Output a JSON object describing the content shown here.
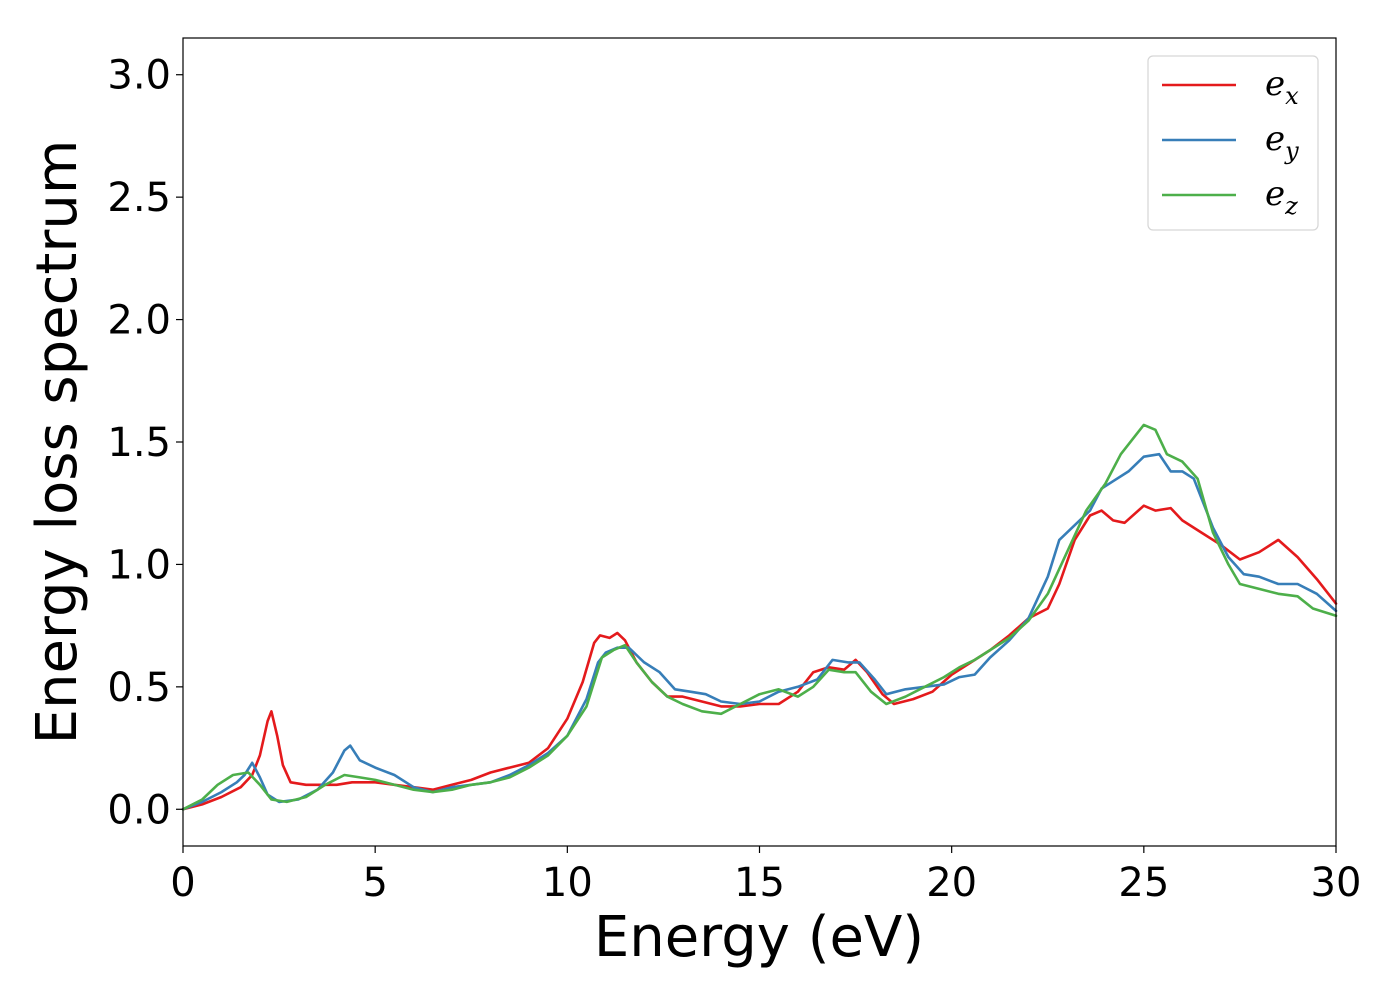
{
  "chart_data": {
    "type": "line",
    "xlabel": "Energy (eV)",
    "ylabel": "Energy loss spectrum",
    "xlim": [
      0,
      30
    ],
    "ylim": [
      -0.15,
      3.15
    ],
    "xticks": [
      0,
      5,
      10,
      15,
      20,
      25,
      30
    ],
    "yticks": [
      0.0,
      0.5,
      1.0,
      1.5,
      2.0,
      2.5,
      3.0
    ],
    "xtick_labels": [
      "0",
      "5",
      "10",
      "15",
      "20",
      "25",
      "30"
    ],
    "ytick_labels": [
      "0.0",
      "0.5",
      "1.0",
      "1.5",
      "2.0",
      "2.5",
      "3.0"
    ],
    "grid": false,
    "legend_position": "top-right",
    "series": [
      {
        "name": "e",
        "subscript": "x",
        "color": "#e41a1c",
        "points": [
          [
            0,
            0
          ],
          [
            0.5,
            0.02
          ],
          [
            1.0,
            0.05
          ],
          [
            1.5,
            0.09
          ],
          [
            1.8,
            0.14
          ],
          [
            2.0,
            0.22
          ],
          [
            2.2,
            0.36
          ],
          [
            2.3,
            0.4
          ],
          [
            2.45,
            0.3
          ],
          [
            2.6,
            0.18
          ],
          [
            2.8,
            0.11
          ],
          [
            3.2,
            0.1
          ],
          [
            3.6,
            0.1
          ],
          [
            4.0,
            0.1
          ],
          [
            4.4,
            0.11
          ],
          [
            5.0,
            0.11
          ],
          [
            5.5,
            0.1
          ],
          [
            6.0,
            0.09
          ],
          [
            6.5,
            0.08
          ],
          [
            7.0,
            0.1
          ],
          [
            7.5,
            0.12
          ],
          [
            8.0,
            0.15
          ],
          [
            8.5,
            0.17
          ],
          [
            9.0,
            0.19
          ],
          [
            9.5,
            0.25
          ],
          [
            10.0,
            0.37
          ],
          [
            10.4,
            0.52
          ],
          [
            10.7,
            0.68
          ],
          [
            10.85,
            0.71
          ],
          [
            11.1,
            0.7
          ],
          [
            11.3,
            0.72
          ],
          [
            11.5,
            0.69
          ],
          [
            11.8,
            0.6
          ],
          [
            12.2,
            0.52
          ],
          [
            12.6,
            0.46
          ],
          [
            13.0,
            0.46
          ],
          [
            13.5,
            0.44
          ],
          [
            14.0,
            0.42
          ],
          [
            14.5,
            0.42
          ],
          [
            15.0,
            0.43
          ],
          [
            15.5,
            0.43
          ],
          [
            16.0,
            0.48
          ],
          [
            16.4,
            0.56
          ],
          [
            16.8,
            0.58
          ],
          [
            17.2,
            0.57
          ],
          [
            17.5,
            0.61
          ],
          [
            17.8,
            0.56
          ],
          [
            18.2,
            0.47
          ],
          [
            18.5,
            0.43
          ],
          [
            19.0,
            0.45
          ],
          [
            19.5,
            0.48
          ],
          [
            20.0,
            0.55
          ],
          [
            20.5,
            0.6
          ],
          [
            21.0,
            0.65
          ],
          [
            21.5,
            0.71
          ],
          [
            22.0,
            0.78
          ],
          [
            22.5,
            0.82
          ],
          [
            22.8,
            0.92
          ],
          [
            23.2,
            1.1
          ],
          [
            23.6,
            1.2
          ],
          [
            23.9,
            1.22
          ],
          [
            24.2,
            1.18
          ],
          [
            24.5,
            1.17
          ],
          [
            25.0,
            1.24
          ],
          [
            25.3,
            1.22
          ],
          [
            25.7,
            1.23
          ],
          [
            26.0,
            1.18
          ],
          [
            26.5,
            1.13
          ],
          [
            27.0,
            1.08
          ],
          [
            27.5,
            1.02
          ],
          [
            28.0,
            1.05
          ],
          [
            28.5,
            1.1
          ],
          [
            29.0,
            1.03
          ],
          [
            29.5,
            0.94
          ],
          [
            30.0,
            0.84
          ]
        ]
      },
      {
        "name": "e",
        "subscript": "y",
        "color": "#377eb8",
        "points": [
          [
            0,
            0
          ],
          [
            0.5,
            0.03
          ],
          [
            1.0,
            0.07
          ],
          [
            1.4,
            0.11
          ],
          [
            1.6,
            0.14
          ],
          [
            1.8,
            0.19
          ],
          [
            2.0,
            0.13
          ],
          [
            2.2,
            0.06
          ],
          [
            2.5,
            0.03
          ],
          [
            3.0,
            0.04
          ],
          [
            3.5,
            0.08
          ],
          [
            3.9,
            0.15
          ],
          [
            4.2,
            0.24
          ],
          [
            4.35,
            0.26
          ],
          [
            4.6,
            0.2
          ],
          [
            5.0,
            0.17
          ],
          [
            5.5,
            0.14
          ],
          [
            6.0,
            0.09
          ],
          [
            6.5,
            0.07
          ],
          [
            7.0,
            0.09
          ],
          [
            7.5,
            0.1
          ],
          [
            8.0,
            0.11
          ],
          [
            8.5,
            0.14
          ],
          [
            9.0,
            0.18
          ],
          [
            9.5,
            0.23
          ],
          [
            10.0,
            0.3
          ],
          [
            10.5,
            0.45
          ],
          [
            10.8,
            0.6
          ],
          [
            11.0,
            0.64
          ],
          [
            11.3,
            0.66
          ],
          [
            11.6,
            0.66
          ],
          [
            12.0,
            0.6
          ],
          [
            12.4,
            0.56
          ],
          [
            12.8,
            0.49
          ],
          [
            13.2,
            0.48
          ],
          [
            13.6,
            0.47
          ],
          [
            14.0,
            0.44
          ],
          [
            14.5,
            0.43
          ],
          [
            15.0,
            0.44
          ],
          [
            15.5,
            0.48
          ],
          [
            16.0,
            0.5
          ],
          [
            16.5,
            0.53
          ],
          [
            16.9,
            0.61
          ],
          [
            17.3,
            0.6
          ],
          [
            17.6,
            0.6
          ],
          [
            18.0,
            0.53
          ],
          [
            18.3,
            0.47
          ],
          [
            18.8,
            0.49
          ],
          [
            19.3,
            0.5
          ],
          [
            19.8,
            0.51
          ],
          [
            20.2,
            0.54
          ],
          [
            20.6,
            0.55
          ],
          [
            21.0,
            0.62
          ],
          [
            21.5,
            0.69
          ],
          [
            22.0,
            0.78
          ],
          [
            22.5,
            0.95
          ],
          [
            22.8,
            1.1
          ],
          [
            23.2,
            1.16
          ],
          [
            23.6,
            1.22
          ],
          [
            23.9,
            1.31
          ],
          [
            24.2,
            1.34
          ],
          [
            24.6,
            1.38
          ],
          [
            25.0,
            1.44
          ],
          [
            25.4,
            1.45
          ],
          [
            25.7,
            1.38
          ],
          [
            26.0,
            1.38
          ],
          [
            26.3,
            1.35
          ],
          [
            26.8,
            1.15
          ],
          [
            27.2,
            1.03
          ],
          [
            27.6,
            0.96
          ],
          [
            28.0,
            0.95
          ],
          [
            28.5,
            0.92
          ],
          [
            29.0,
            0.92
          ],
          [
            29.5,
            0.88
          ],
          [
            30.0,
            0.81
          ]
        ]
      },
      {
        "name": "e",
        "subscript": "z",
        "color": "#4daf4a",
        "points": [
          [
            0,
            0
          ],
          [
            0.5,
            0.04
          ],
          [
            0.9,
            0.1
          ],
          [
            1.3,
            0.14
          ],
          [
            1.7,
            0.15
          ],
          [
            2.0,
            0.1
          ],
          [
            2.3,
            0.04
          ],
          [
            2.7,
            0.03
          ],
          [
            3.2,
            0.05
          ],
          [
            3.7,
            0.1
          ],
          [
            4.2,
            0.14
          ],
          [
            4.6,
            0.13
          ],
          [
            5.0,
            0.12
          ],
          [
            5.5,
            0.1
          ],
          [
            6.0,
            0.08
          ],
          [
            6.5,
            0.07
          ],
          [
            7.0,
            0.08
          ],
          [
            7.5,
            0.1
          ],
          [
            8.0,
            0.11
          ],
          [
            8.5,
            0.13
          ],
          [
            9.0,
            0.17
          ],
          [
            9.5,
            0.22
          ],
          [
            10.0,
            0.3
          ],
          [
            10.5,
            0.42
          ],
          [
            10.9,
            0.62
          ],
          [
            11.2,
            0.65
          ],
          [
            11.5,
            0.67
          ],
          [
            11.8,
            0.6
          ],
          [
            12.2,
            0.52
          ],
          [
            12.6,
            0.46
          ],
          [
            13.0,
            0.43
          ],
          [
            13.5,
            0.4
          ],
          [
            14.0,
            0.39
          ],
          [
            14.5,
            0.43
          ],
          [
            15.0,
            0.47
          ],
          [
            15.5,
            0.49
          ],
          [
            16.0,
            0.46
          ],
          [
            16.4,
            0.5
          ],
          [
            16.8,
            0.57
          ],
          [
            17.2,
            0.56
          ],
          [
            17.5,
            0.56
          ],
          [
            17.9,
            0.48
          ],
          [
            18.3,
            0.43
          ],
          [
            18.8,
            0.46
          ],
          [
            19.3,
            0.5
          ],
          [
            19.8,
            0.54
          ],
          [
            20.2,
            0.58
          ],
          [
            20.6,
            0.61
          ],
          [
            21.0,
            0.65
          ],
          [
            21.5,
            0.7
          ],
          [
            22.0,
            0.77
          ],
          [
            22.5,
            0.88
          ],
          [
            23.0,
            1.05
          ],
          [
            23.5,
            1.22
          ],
          [
            24.0,
            1.33
          ],
          [
            24.4,
            1.45
          ],
          [
            24.8,
            1.53
          ],
          [
            25.0,
            1.57
          ],
          [
            25.3,
            1.55
          ],
          [
            25.6,
            1.45
          ],
          [
            26.0,
            1.42
          ],
          [
            26.4,
            1.35
          ],
          [
            26.8,
            1.13
          ],
          [
            27.2,
            1.0
          ],
          [
            27.5,
            0.92
          ],
          [
            28.0,
            0.9
          ],
          [
            28.5,
            0.88
          ],
          [
            29.0,
            0.87
          ],
          [
            29.4,
            0.82
          ],
          [
            30.0,
            0.79
          ]
        ]
      }
    ]
  }
}
